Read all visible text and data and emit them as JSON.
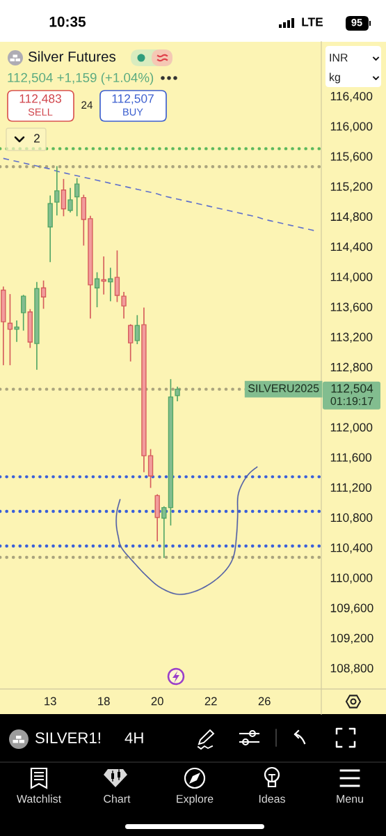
{
  "chart_data": {
    "type": "candlestick",
    "title": "Silver Futures",
    "subtitle": "112,504 +1,159 (+1.04%)",
    "categories": [
      null,
      null,
      null,
      null,
      null,
      null,
      null,
      "13",
      null,
      null,
      null,
      null,
      null,
      null,
      null,
      "18",
      null,
      null,
      null,
      null,
      null,
      null,
      null,
      "20",
      null,
      null,
      null,
      null,
      null,
      null,
      null,
      "22",
      null,
      null,
      null,
      null,
      null,
      null,
      null,
      "26",
      null,
      null,
      null,
      null,
      null,
      null,
      null,
      null
    ],
    "ohlc": [
      [
        113820,
        113860,
        112830,
        113400
      ],
      [
        113380,
        113760,
        112830,
        113300
      ],
      [
        113300,
        113410,
        113140,
        113330
      ],
      [
        113520,
        113750,
        113290,
        113740
      ],
      [
        113530,
        113560,
        113060,
        113130
      ],
      [
        113110,
        113920,
        112770,
        113840
      ],
      [
        113850,
        113940,
        113580,
        113730
      ],
      [
        114660,
        115070,
        114200,
        114970
      ],
      [
        114990,
        115460,
        114820,
        115140
      ],
      [
        115150,
        115290,
        114810,
        114900
      ],
      [
        114880,
        115170,
        114860,
        115020
      ],
      [
        115060,
        115300,
        114810,
        115230
      ],
      [
        115050,
        115080,
        114420,
        114760
      ],
      [
        114770,
        114800,
        113450,
        113890
      ],
      [
        113850,
        114050,
        113600,
        113970
      ],
      [
        113960,
        114260,
        113770,
        113940
      ],
      [
        113930,
        114110,
        113680,
        113970
      ],
      [
        113990,
        114340,
        113670,
        113750
      ],
      [
        113740,
        113790,
        113450,
        113610
      ],
      [
        113350,
        113360,
        112880,
        113120
      ],
      [
        113150,
        113480,
        113110,
        113350
      ],
      [
        113360,
        113580,
        111410,
        111620
      ],
      [
        111620,
        111700,
        111200,
        111350
      ],
      [
        111090,
        111100,
        110490,
        110800
      ],
      [
        110790,
        110940,
        110270,
        110930
      ],
      [
        110930,
        112630,
        110700,
        112400
      ],
      [
        112420,
        112530,
        112350,
        112504
      ],
      null,
      null,
      null,
      null,
      null,
      null,
      null,
      null,
      null,
      null,
      null,
      null,
      null,
      null,
      null,
      null,
      null,
      null,
      null,
      null,
      null
    ],
    "colors": [
      "#f29c9c",
      "#f29c9c",
      "#82bd8f",
      "#82bd8f",
      "#f29c9c",
      "#82bd8f",
      "#f29c9c",
      "#82bd8f",
      "#82bd8f",
      "#f29c9c",
      "#82bd8f",
      "#82bd8f",
      "#f29c9c",
      "#f29c9c",
      "#82bd8f",
      "#f29c9c",
      "#82bd8f",
      "#f29c9c",
      "#f29c9c",
      "#f29c9c",
      "#82bd8f",
      "#f29c9c",
      "#f29c9c",
      "#f29c9c",
      "#82bd8f",
      "#82bd8f",
      "#82bd8f",
      null,
      null,
      null,
      null,
      null,
      null,
      null,
      null,
      null,
      null,
      null,
      null,
      null,
      null,
      null,
      null,
      null,
      null,
      null,
      null,
      null
    ],
    "ylim": [
      108520,
      117120
    ],
    "yticks": [
      {
        "value": 108800,
        "label": "108,800"
      },
      {
        "value": 109200,
        "label": "109,200"
      },
      {
        "value": 109600,
        "label": "109,600"
      },
      {
        "value": 110000,
        "label": "110,000"
      },
      {
        "value": 110400,
        "label": "110,400"
      },
      {
        "value": 110800,
        "label": "110,800"
      },
      {
        "value": 111200,
        "label": "111,200"
      },
      {
        "value": 111600,
        "label": "111,600"
      },
      {
        "value": 112000,
        "label": "112,000"
      },
      {
        "value": 112800,
        "label": "112,800"
      },
      {
        "value": 113200,
        "label": "113,200"
      },
      {
        "value": 113600,
        "label": "113,600"
      },
      {
        "value": 114000,
        "label": "114,000"
      },
      {
        "value": 114400,
        "label": "114,400"
      },
      {
        "value": 114800,
        "label": "114,800"
      },
      {
        "value": 115200,
        "label": "115,200"
      },
      {
        "value": 115600,
        "label": "115,600"
      },
      {
        "value": 116000,
        "label": "116,000"
      },
      {
        "value": 116400,
        "label": "116,400"
      }
    ],
    "ref_lines": [
      {
        "axis": "y",
        "value": 115700,
        "color": "#5cb85c",
        "line_style": "dotted"
      },
      {
        "axis": "y",
        "value": 115460,
        "color": "#aaa47e",
        "line_style": "dotted"
      },
      {
        "axis": "y",
        "value": 112504,
        "label": "SILVERU2025",
        "color": "#aaa47e",
        "line_style": "dotted"
      },
      {
        "axis": "y",
        "value": 111340,
        "color": "#3a5fd9",
        "line_style": "dotted"
      },
      {
        "axis": "y",
        "value": 110880,
        "color": "#3a5fd9",
        "line_style": "dotted"
      },
      {
        "axis": "y",
        "value": 110420,
        "color": "#3a5fd9",
        "line_style": "dotted"
      },
      {
        "axis": "y",
        "value": 110270,
        "color": "#aaa47e",
        "line_style": "dotted"
      }
    ],
    "series": [
      {
        "type": "line",
        "values": [
          115570,
          115550,
          115530,
          115510,
          115490,
          115470,
          115450,
          115430,
          115400,
          115380,
          115360,
          115340,
          115320,
          115300,
          115280,
          115260,
          115240,
          115220,
          115200,
          115180,
          115160,
          115140,
          115120,
          115100,
          115070,
          115050,
          115030,
          115010,
          114990,
          114970,
          114950,
          114930,
          114910,
          114890,
          114870,
          114850,
          114830,
          114810,
          114790,
          114760,
          114740,
          114720,
          114700,
          114680,
          114660,
          114640,
          114620,
          114600
        ],
        "color": "#5f70cc",
        "line_style": "dashed"
      }
    ],
    "annotations": [
      "112,483",
      "SELL",
      "24",
      "112,507",
      "BUY",
      "2",
      "INR",
      "kg",
      "01:19:17",
      "10:35",
      "LTE",
      "95",
      "SILVER1!",
      "4H",
      "Watchlist",
      "Chart",
      "Explore",
      "Ideas",
      "Menu",
      "112,504"
    ]
  }
}
